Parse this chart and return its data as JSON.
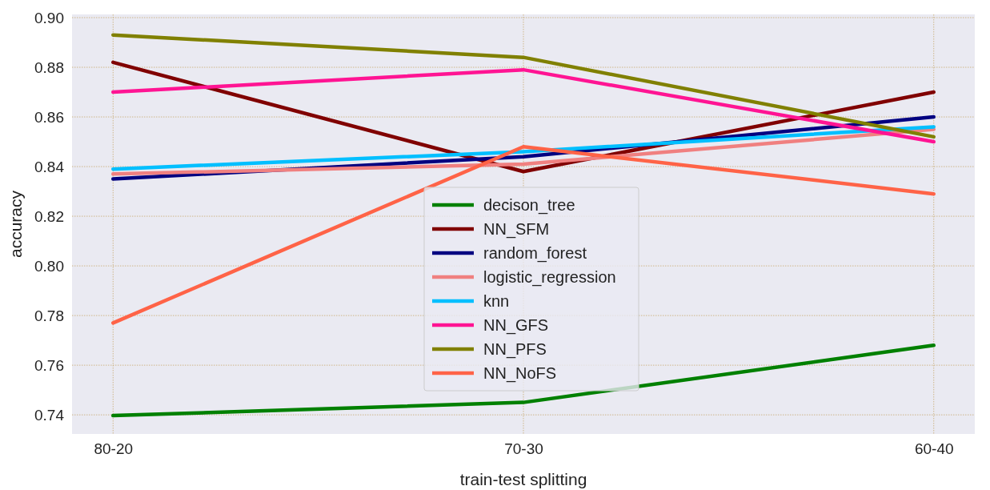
{
  "chart_data": {
    "type": "line",
    "xlabel": "train-test splitting",
    "ylabel": "accuracy",
    "categories": [
      "80-20",
      "70-30",
      "60-40"
    ],
    "ylim": [
      0.7323,
      0.9013
    ],
    "yticks": [
      {
        "value": 0.74,
        "label": "0.74"
      },
      {
        "value": 0.76,
        "label": "0.76"
      },
      {
        "value": 0.78,
        "label": "0.78"
      },
      {
        "value": 0.8,
        "label": "0.80"
      },
      {
        "value": 0.82,
        "label": "0.82"
      },
      {
        "value": 0.84,
        "label": "0.84"
      },
      {
        "value": 0.86,
        "label": "0.86"
      },
      {
        "value": 0.88,
        "label": "0.88"
      },
      {
        "value": 0.9,
        "label": "0.90"
      }
    ],
    "grid": true,
    "legend": "bottom",
    "marker": "none",
    "line_style": "solid",
    "series": [
      {
        "name": "decison_tree",
        "color": "#008000",
        "values": [
          0.7397,
          0.745,
          0.768
        ]
      },
      {
        "name": "NN_SFM",
        "color": "#800000",
        "values": [
          0.882,
          0.838,
          0.87
        ]
      },
      {
        "name": "random_forest",
        "color": "#000080",
        "values": [
          0.835,
          0.844,
          0.86
        ]
      },
      {
        "name": "logistic_regression",
        "color": "#f08080",
        "values": [
          0.837,
          0.841,
          0.855
        ]
      },
      {
        "name": "knn",
        "color": "#00bfff",
        "values": [
          0.839,
          0.846,
          0.856
        ]
      },
      {
        "name": "NN_GFS",
        "color": "#ff1493",
        "values": [
          0.87,
          0.879,
          0.85
        ]
      },
      {
        "name": "NN_PFS",
        "color": "#808000",
        "values": [
          0.893,
          0.884,
          0.852
        ]
      },
      {
        "name": "NN_NoFS",
        "color": "#ff6347",
        "values": [
          0.777,
          0.848,
          0.829
        ]
      }
    ]
  }
}
